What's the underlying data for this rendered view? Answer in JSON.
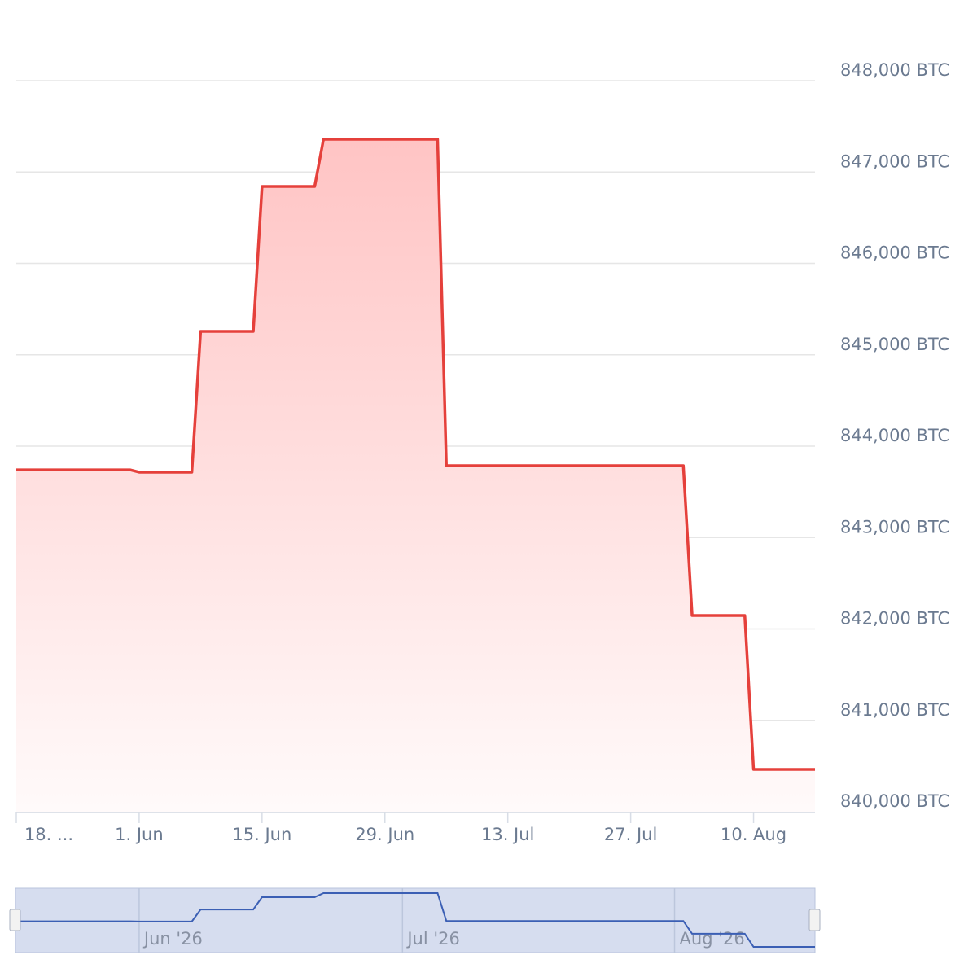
{
  "chart_data": {
    "type": "area",
    "x": [
      "2026-05-18",
      "2026-05-31",
      "2026-06-01",
      "2026-06-07",
      "2026-06-08",
      "2026-06-14",
      "2026-06-15",
      "2026-06-21",
      "2026-06-22",
      "2026-07-05",
      "2026-07-06",
      "2026-08-02",
      "2026-08-03",
      "2026-08-09",
      "2026-08-10",
      "2026-08-17"
    ],
    "values": [
      843740,
      843740,
      843715,
      843715,
      845256,
      845256,
      846842,
      846842,
      847359,
      847359,
      843786,
      843786,
      842147,
      842147,
      840463,
      840463
    ],
    "color": "#e5403b",
    "xlim": [
      "2026-05-18",
      "2026-08-17"
    ],
    "xticks": [
      {
        "value": "2026-05-18",
        "label": "18. ..."
      },
      {
        "value": "2026-06-01",
        "label": "1. Jun"
      },
      {
        "value": "2026-06-15",
        "label": "15. Jun"
      },
      {
        "value": "2026-06-29",
        "label": "29. Jun"
      },
      {
        "value": "2026-07-13",
        "label": "13. Jul"
      },
      {
        "value": "2026-07-27",
        "label": "27. Jul"
      },
      {
        "value": "2026-08-10",
        "label": "10. Aug"
      }
    ],
    "ylim": [
      840000,
      848000
    ],
    "yticks": [
      {
        "value": 840000,
        "label": "840,000 BTC"
      },
      {
        "value": 841000,
        "label": "841,000 BTC"
      },
      {
        "value": 842000,
        "label": "842,000 BTC"
      },
      {
        "value": 843000,
        "label": "843,000 BTC"
      },
      {
        "value": 844000,
        "label": "844,000 BTC"
      },
      {
        "value": 845000,
        "label": "845,000 BTC"
      },
      {
        "value": 846000,
        "label": "846,000 BTC"
      },
      {
        "value": 847000,
        "label": "847,000 BTC"
      },
      {
        "value": 848000,
        "label": "848,000 BTC"
      }
    ],
    "grid": true,
    "navigator_color": "#3b5fb4",
    "navigator_xticks": [
      {
        "value": "2026-06-01",
        "label": "Jun '26"
      },
      {
        "value": "2026-07-01",
        "label": "Jul '26"
      },
      {
        "value": "2026-08-01",
        "label": "Aug '26"
      }
    ]
  }
}
